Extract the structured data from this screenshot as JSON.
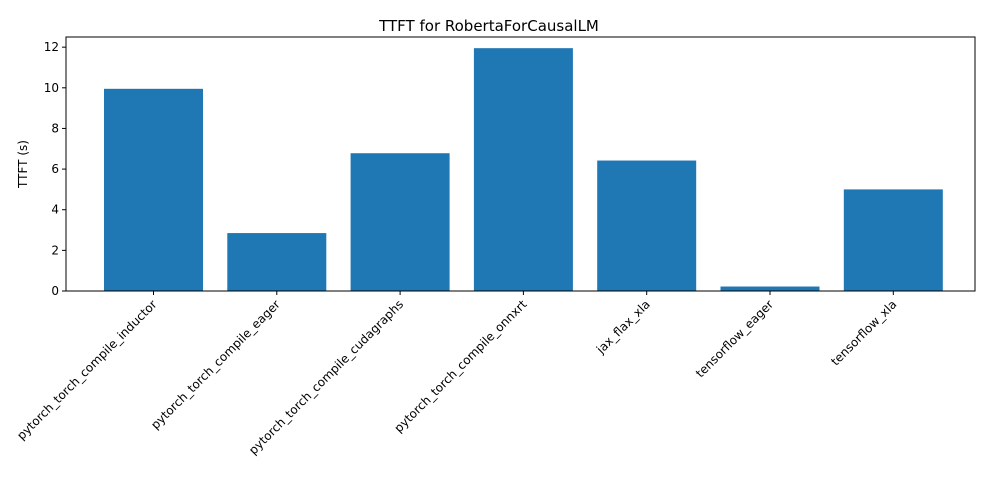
{
  "chart_data": {
    "type": "bar",
    "title": "TTFT for RobertaForCausalLM",
    "xlabel": "",
    "ylabel": "TTFT (s)",
    "categories": [
      "pytorch_torch_compile_inductor",
      "pytorch_torch_compile_eager",
      "pytorch_torch_compile_cudagraphs",
      "pytorch_torch_compile_onnxrt",
      "jax_flax_xla",
      "tensorflow_eager",
      "tensorflow_xla"
    ],
    "values": [
      9.95,
      2.85,
      6.78,
      11.95,
      6.42,
      0.22,
      5.0
    ],
    "ylim": [
      0,
      12.5
    ],
    "yticks": [
      0,
      2,
      4,
      6,
      8,
      10,
      12
    ],
    "bar_color": "#1f77b4",
    "grid": false,
    "legend": "none"
  }
}
